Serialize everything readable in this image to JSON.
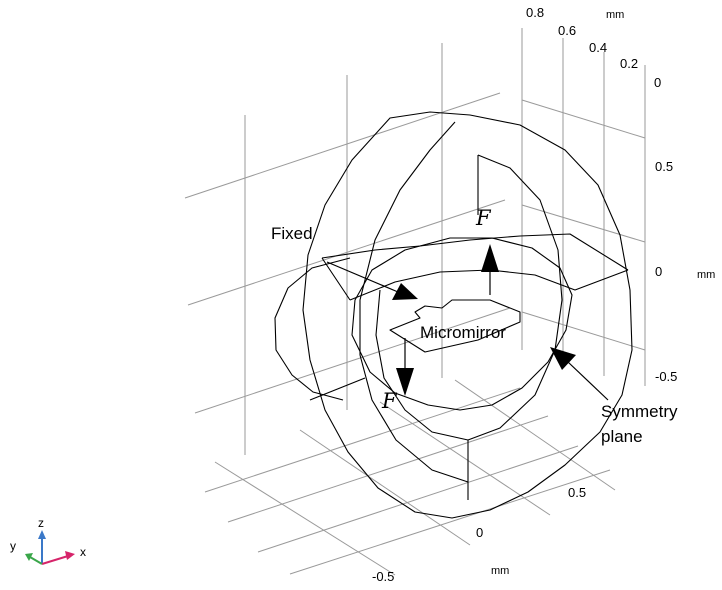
{
  "axes": {
    "z_ticks": [
      "0.8",
      "0.6",
      "0.4",
      "0.2",
      "0"
    ],
    "z_unit": "mm",
    "right_ticks": [
      "0.5",
      "0",
      "-0.5"
    ],
    "right_unit": "mm",
    "bottom_ticks": [
      "0.5",
      "0",
      "-0.5"
    ],
    "bottom_unit": "mm"
  },
  "labels": {
    "fixed": "Fixed",
    "micromirror": "Micromirror",
    "symmetry_line1": "Symmetry",
    "symmetry_line2": "plane",
    "force_top": "F",
    "force_bottom": "F"
  },
  "triad": {
    "x": "x",
    "y": "y",
    "z": "z"
  },
  "colors": {
    "grid": "#9a9a9a",
    "geometry": "#000000",
    "x_axis": "#d6246a",
    "y_axis": "#3aa64a",
    "z_axis": "#3a78c8"
  }
}
